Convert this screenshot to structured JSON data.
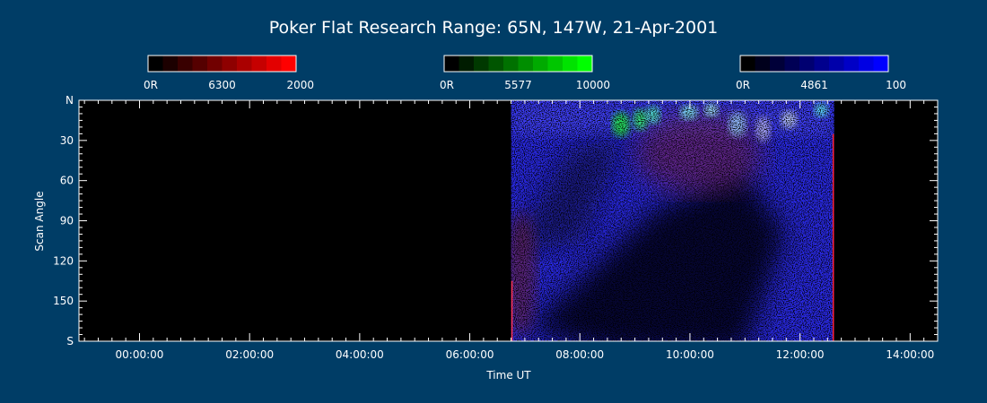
{
  "chart_data": {
    "type": "heatmap",
    "title": "Poker Flat Research Range: 65N, 147W, 21-Apr-2001",
    "xlabel": "Time UT",
    "ylabel": "Scan Angle",
    "x_ticks": [
      "00:00:00",
      "02:00:00",
      "04:00:00",
      "06:00:00",
      "08:00:00",
      "10:00:00",
      "12:00:00",
      "14:00:00"
    ],
    "x_range_hours": [
      -1.1,
      14.5
    ],
    "y_ticks": [
      "N",
      "30",
      "60",
      "90",
      "120",
      "150",
      "S"
    ],
    "y_range_deg": [
      0,
      180
    ],
    "data_coverage_hours": [
      6.75,
      12.62
    ],
    "colorbars": [
      {
        "channel": "6300",
        "min_label": "0R",
        "mid_label": "6300",
        "max_label": "2000",
        "color": "#ff0000"
      },
      {
        "channel": "5577",
        "min_label": "0R",
        "mid_label": "5577",
        "max_label": "10000",
        "color": "#00ff00"
      },
      {
        "channel": "4861",
        "min_label": "0R",
        "mid_label": "4861",
        "max_label": "100",
        "color": "#0000ff"
      }
    ]
  }
}
